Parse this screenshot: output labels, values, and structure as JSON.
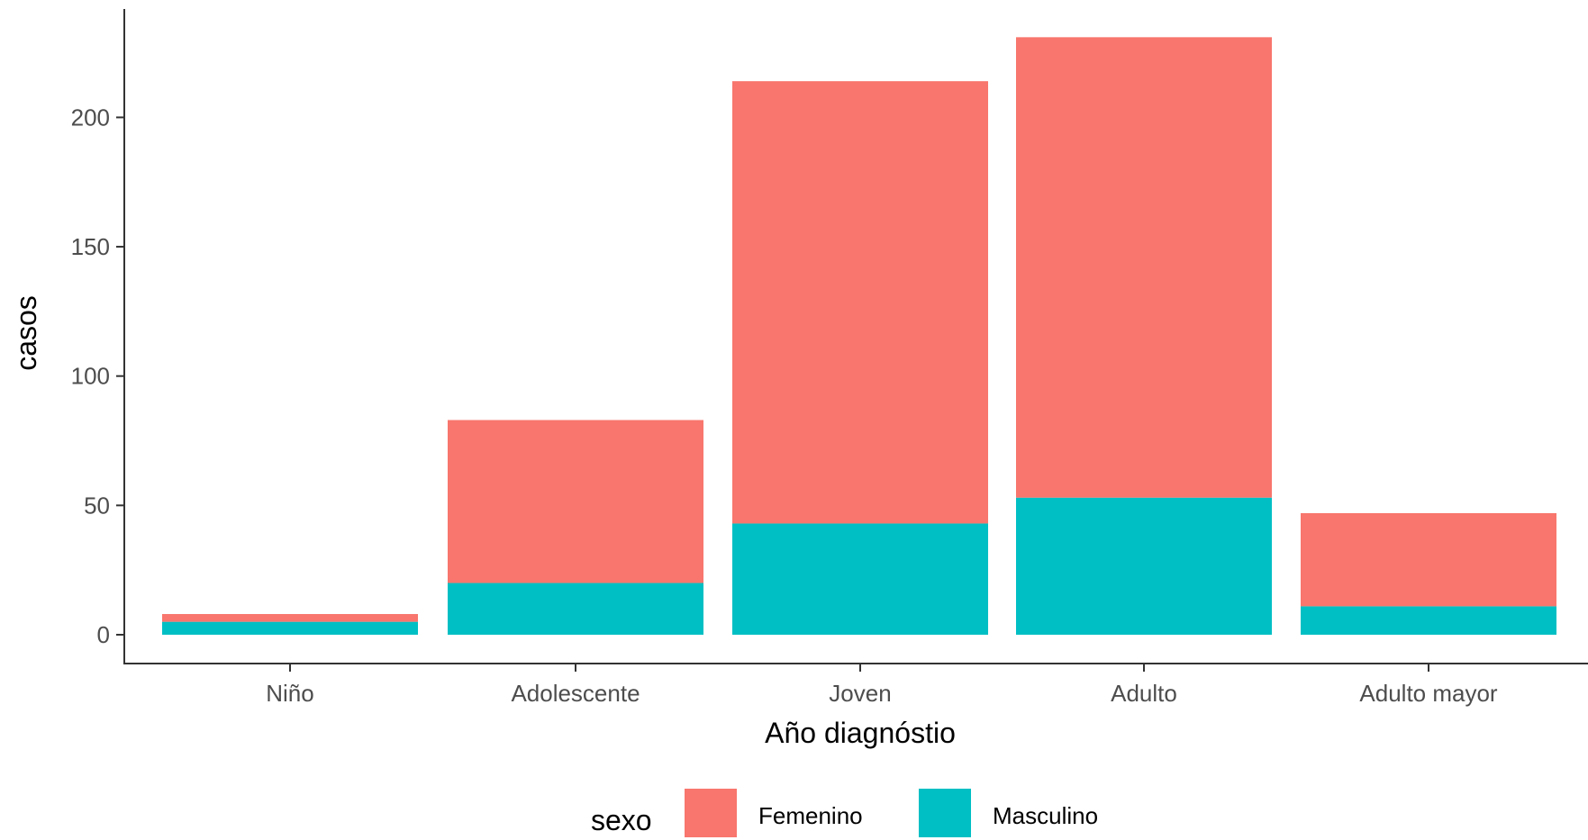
{
  "chart_data": {
    "type": "bar",
    "stacked": true,
    "categories": [
      "Niño",
      "Adolescente",
      "Joven",
      "Adulto",
      "Adulto mayor"
    ],
    "series": [
      {
        "name": "Femenino",
        "color": "#F8766D",
        "values": [
          3,
          63,
          171,
          178,
          36
        ]
      },
      {
        "name": "Masculino",
        "color": "#00BFC4",
        "values": [
          5,
          20,
          43,
          53,
          11
        ]
      }
    ],
    "xlabel": "Año diagnóstio",
    "ylabel": "casos",
    "ylim": [
      0,
      240
    ],
    "yticks": [
      0,
      50,
      100,
      150,
      200
    ],
    "grid": false,
    "legend": {
      "title": "sexo",
      "position": "bottom"
    },
    "axis_color": "#333333",
    "tick_label_color": "#4d4d4d",
    "background": "#ffffff"
  }
}
